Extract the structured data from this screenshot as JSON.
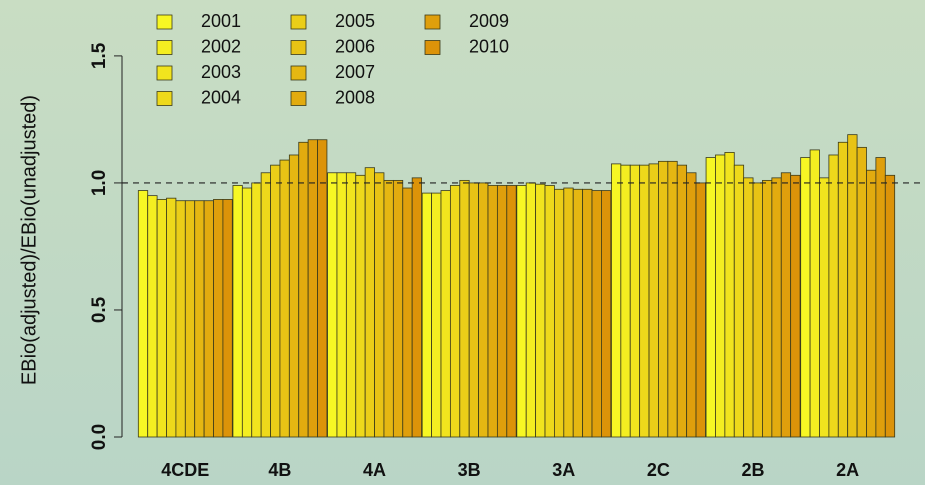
{
  "chart_data": {
    "type": "bar",
    "y_label": "EBio(adjusted)/EBio(unadjusted)",
    "categories": [
      "4CDE",
      "4B",
      "4A",
      "3B",
      "3A",
      "2C",
      "2B",
      "2A"
    ],
    "series": [
      {
        "name": "2001",
        "color": "#f7f724",
        "values": [
          0.97,
          0.99,
          1.04,
          0.96,
          0.99,
          1.075,
          1.1,
          1.1
        ]
      },
      {
        "name": "2002",
        "color": "#f4ee21",
        "values": [
          0.95,
          0.98,
          1.04,
          0.96,
          1.0,
          1.07,
          1.11,
          1.13
        ]
      },
      {
        "name": "2003",
        "color": "#f1e41e",
        "values": [
          0.935,
          1.0,
          1.04,
          0.97,
          0.995,
          1.07,
          1.12,
          1.02
        ]
      },
      {
        "name": "2004",
        "color": "#eed91b",
        "values": [
          0.94,
          1.04,
          1.03,
          0.99,
          0.99,
          1.07,
          1.07,
          1.11
        ]
      },
      {
        "name": "2005",
        "color": "#ebce18",
        "values": [
          0.93,
          1.07,
          1.06,
          1.01,
          0.975,
          1.075,
          1.02,
          1.16
        ]
      },
      {
        "name": "2006",
        "color": "#e8c315",
        "values": [
          0.93,
          1.09,
          1.04,
          1.0,
          0.98,
          1.085,
          1.0,
          1.19
        ]
      },
      {
        "name": "2007",
        "color": "#e5b712",
        "values": [
          0.93,
          1.11,
          1.01,
          1.0,
          0.975,
          1.085,
          1.01,
          1.14
        ]
      },
      {
        "name": "2008",
        "color": "#e2ab0f",
        "values": [
          0.93,
          1.16,
          1.01,
          0.99,
          0.975,
          1.07,
          1.02,
          1.05
        ]
      },
      {
        "name": "2009",
        "color": "#df9f0c",
        "values": [
          0.935,
          1.17,
          0.98,
          0.99,
          0.97,
          1.04,
          1.04,
          1.1
        ]
      },
      {
        "name": "2010",
        "color": "#dc9309",
        "values": [
          0.935,
          1.17,
          1.02,
          0.99,
          0.97,
          1.0,
          1.03,
          1.03
        ]
      }
    ],
    "ylim": [
      0,
      1.72
    ],
    "yticks": [
      {
        "value": 0,
        "label": "0.0"
      },
      0.5,
      {
        "value": 1,
        "label": "1.0"
      },
      1.5
    ],
    "reference_line": 1
  }
}
